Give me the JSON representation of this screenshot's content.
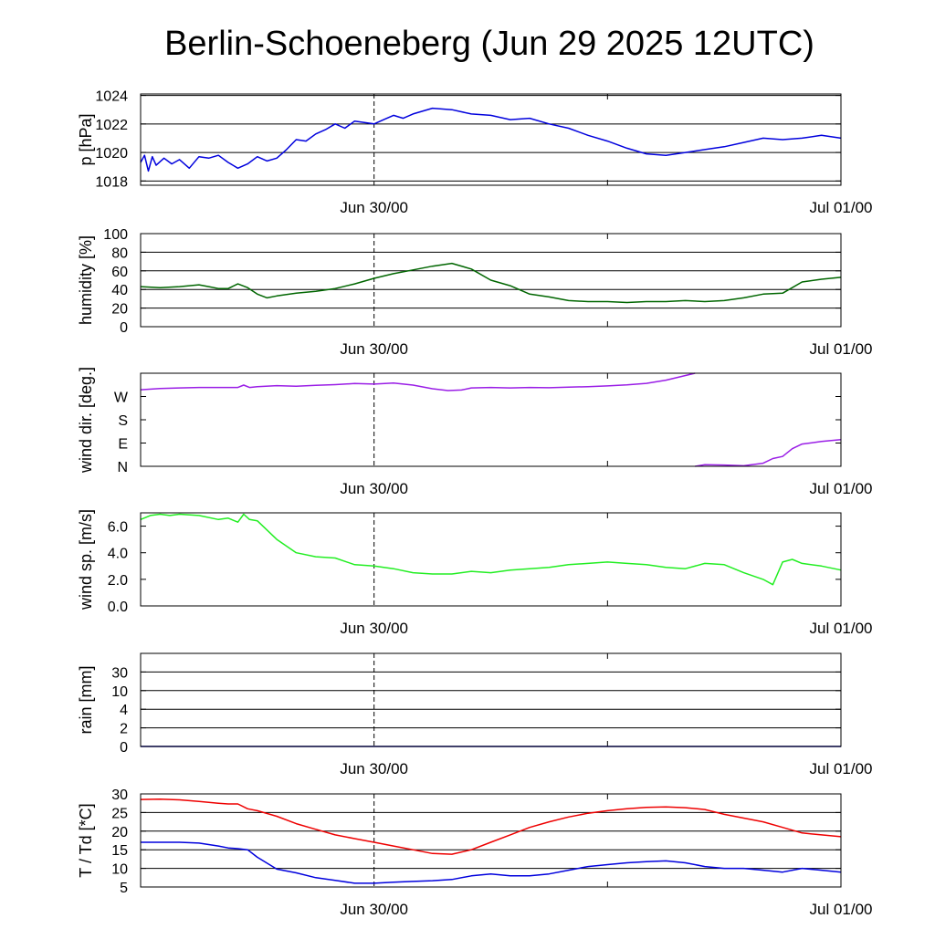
{
  "title": "Berlin-Schoeneberg (Jun 29 2025 12UTC)",
  "x_ticks": [
    "Jun 30/00",
    "Jul 01/00"
  ],
  "x_range_hours": [
    0,
    36
  ],
  "colors": {
    "pressure": "#0000dd",
    "humidity": "#006600",
    "wind_dir": "#9a1ee6",
    "wind_speed": "#22ee22",
    "rain": "#0000aa",
    "temperature": "#ee0000",
    "dewpoint": "#0000dd"
  },
  "chart_data": [
    {
      "type": "line",
      "ylabel": "p [hPa]",
      "ylim": [
        1017.7,
        1024.1
      ],
      "y_ticks": [
        1018,
        1020,
        1022,
        1024
      ],
      "y_tick_labels": [
        "1018",
        "1020",
        "1022",
        "1024"
      ],
      "grid_y": [
        1018,
        1020,
        1022,
        1024
      ],
      "series": [
        {
          "key": "pressure",
          "x": [
            0,
            0.2,
            0.4,
            0.6,
            0.8,
            1.2,
            1.6,
            2.0,
            2.5,
            3.0,
            3.5,
            4.0,
            4.5,
            5.0,
            5.5,
            6.0,
            6.5,
            7.0,
            7.5,
            8.0,
            8.5,
            9.0,
            9.5,
            10.0,
            10.5,
            11.0,
            11.5,
            12.0,
            12.5,
            13.0,
            13.5,
            14.0,
            15.0,
            16.0,
            17.0,
            18.0,
            19.0,
            20.0,
            21.0,
            22.0,
            23.0,
            24.0,
            25.0,
            26.0,
            27.0,
            28.0,
            29.0,
            30.0,
            31.0,
            32.0,
            33.0,
            34.0,
            35.0,
            36.0
          ],
          "y": [
            1019.3,
            1019.8,
            1018.7,
            1019.7,
            1019.1,
            1019.6,
            1019.2,
            1019.5,
            1018.9,
            1019.7,
            1019.6,
            1019.8,
            1019.3,
            1018.9,
            1019.2,
            1019.7,
            1019.4,
            1019.6,
            1020.2,
            1020.9,
            1020.8,
            1021.3,
            1021.6,
            1022.0,
            1021.7,
            1022.2,
            1022.1,
            1022.0,
            1022.3,
            1022.6,
            1022.4,
            1022.7,
            1023.1,
            1023.0,
            1022.7,
            1022.6,
            1022.3,
            1022.4,
            1022.0,
            1021.7,
            1021.2,
            1020.8,
            1020.3,
            1019.9,
            1019.8,
            1020.0,
            1020.2,
            1020.4,
            1020.7,
            1021.0,
            1020.9,
            1021.0,
            1021.2,
            1021.0
          ]
        }
      ]
    },
    {
      "type": "line",
      "ylabel": "humidity [%]",
      "ylim": [
        0,
        100
      ],
      "y_ticks": [
        0,
        20,
        40,
        60,
        80,
        100
      ],
      "y_tick_labels": [
        "0",
        "20",
        "40",
        "60",
        "80",
        "100"
      ],
      "grid_y": [
        20,
        40,
        60,
        80,
        100
      ],
      "series": [
        {
          "key": "humidity",
          "x": [
            0,
            1,
            2,
            3,
            3.5,
            4,
            4.5,
            5,
            5.5,
            6,
            6.5,
            7,
            8,
            9,
            10,
            11,
            12,
            13,
            14,
            15,
            16,
            17,
            18,
            19,
            20,
            21,
            22,
            23,
            24,
            25,
            26,
            27,
            28,
            29,
            30,
            31,
            32,
            33,
            34,
            35,
            36
          ],
          "y": [
            43,
            42,
            43,
            45,
            43,
            41,
            41,
            46,
            42,
            35,
            31,
            33,
            36,
            38,
            41,
            46,
            52,
            57,
            61,
            65,
            68,
            62,
            50,
            44,
            35,
            32,
            28,
            27,
            27,
            26,
            27,
            27,
            28,
            27,
            28,
            31,
            35,
            36,
            48,
            51,
            53
          ]
        }
      ]
    },
    {
      "type": "line",
      "ylabel": "wind dir. [deg.]",
      "ylim": [
        0,
        360
      ],
      "y_ticks": [
        0,
        90,
        180,
        270
      ],
      "y_tick_labels": [
        "N",
        "E",
        "S",
        "W"
      ],
      "grid_y": [],
      "series": [
        {
          "key": "wind_dir",
          "x": [
            0,
            1,
            2,
            3,
            4,
            5,
            5.3,
            5.6,
            6,
            7,
            8,
            9,
            10,
            11,
            12,
            13,
            14,
            15,
            15.8,
            16.5,
            17,
            18,
            19,
            20,
            21,
            22,
            23,
            24,
            25,
            26,
            27,
            28.5
          ],
          "y": [
            296,
            301,
            303,
            305,
            305,
            305,
            314,
            305,
            308,
            312,
            310,
            313,
            316,
            320,
            318,
            322,
            314,
            300,
            293,
            295,
            303,
            305,
            303,
            305,
            304,
            306,
            308,
            311,
            315,
            321,
            333,
            360
          ]
        },
        {
          "key": "wind_dir",
          "x": [
            28.5,
            29,
            30,
            31,
            32,
            32.5,
            33,
            33.5,
            34,
            35,
            36
          ],
          "y": [
            0,
            6,
            5,
            2,
            12,
            30,
            38,
            68,
            86,
            96,
            103
          ]
        }
      ]
    },
    {
      "type": "line",
      "ylabel": "wind sp. [m/s]",
      "ylim": [
        0,
        7
      ],
      "y_ticks": [
        0,
        2,
        4,
        6
      ],
      "y_tick_labels": [
        "0.0",
        "2.0",
        "4.0",
        "6.0"
      ],
      "grid_y": [],
      "series": [
        {
          "key": "wind_speed",
          "x": [
            0,
            0.5,
            1,
            1.5,
            2,
            3,
            4,
            4.5,
            5,
            5.3,
            5.6,
            6,
            7,
            8,
            9,
            10,
            11,
            12,
            13,
            14,
            15,
            16,
            17,
            18,
            19,
            20,
            21,
            22,
            23,
            24,
            25,
            26,
            27,
            28,
            29,
            30,
            31,
            32,
            32.5,
            33,
            33.5,
            34,
            35,
            36
          ],
          "y": [
            6.5,
            6.8,
            6.9,
            6.8,
            6.9,
            6.8,
            6.5,
            6.6,
            6.3,
            6.9,
            6.5,
            6.4,
            5.0,
            4.0,
            3.7,
            3.6,
            3.1,
            3.0,
            2.8,
            2.5,
            2.4,
            2.4,
            2.6,
            2.5,
            2.7,
            2.8,
            2.9,
            3.1,
            3.2,
            3.3,
            3.2,
            3.1,
            2.9,
            2.8,
            3.2,
            3.1,
            2.5,
            2.0,
            1.6,
            3.3,
            3.5,
            3.2,
            3.0,
            2.7
          ]
        }
      ]
    },
    {
      "type": "line",
      "ylabel": "rain [mm]",
      "ylim": [
        0,
        5
      ],
      "y_ticks": [
        0,
        1,
        2,
        3,
        4,
        5
      ],
      "y_tick_labels": [
        "0",
        "2",
        "4",
        "10",
        "30",
        ""
      ],
      "grid_y": [
        1,
        2,
        3,
        4
      ],
      "series": [
        {
          "key": "rain",
          "x": [
            0,
            36
          ],
          "y": [
            0,
            0
          ]
        }
      ]
    },
    {
      "type": "line",
      "ylabel": "T / Td [*C]",
      "ylim": [
        5,
        30
      ],
      "y_ticks": [
        5,
        10,
        15,
        20,
        25,
        30
      ],
      "y_tick_labels": [
        "5",
        "10",
        "15",
        "20",
        "25",
        "30"
      ],
      "grid_y": [
        10,
        15,
        20,
        25,
        30
      ],
      "series": [
        {
          "key": "temperature",
          "x": [
            0,
            1,
            2,
            3,
            4,
            4.5,
            5,
            5.5,
            6,
            7,
            8,
            9,
            10,
            11,
            12,
            13,
            14,
            15,
            16,
            17,
            18,
            19,
            20,
            21,
            22,
            23,
            24,
            25,
            26,
            27,
            28,
            29,
            30,
            31,
            32,
            33,
            34,
            35,
            36
          ],
          "y": [
            28.5,
            28.6,
            28.4,
            28.0,
            27.5,
            27.3,
            27.3,
            26.0,
            25.5,
            24.0,
            22.0,
            20.5,
            19.0,
            18.0,
            17.0,
            16.0,
            15.0,
            14.0,
            13.8,
            15.0,
            17.0,
            19.0,
            21.0,
            22.5,
            23.8,
            24.8,
            25.5,
            26.0,
            26.4,
            26.5,
            26.3,
            25.8,
            24.5,
            23.5,
            22.5,
            21.0,
            19.5,
            19.0,
            18.5
          ]
        },
        {
          "key": "dewpoint",
          "x": [
            0,
            1,
            2,
            3,
            4,
            4.5,
            5,
            5.5,
            6,
            7,
            8,
            9,
            10,
            11,
            12,
            13,
            14,
            15,
            16,
            17,
            18,
            19,
            20,
            21,
            22,
            23,
            24,
            25,
            26,
            27,
            28,
            29,
            30,
            31,
            32,
            33,
            34,
            35,
            36
          ],
          "y": [
            17.0,
            17.0,
            17.0,
            16.8,
            16.0,
            15.5,
            15.3,
            15.0,
            13.0,
            9.8,
            8.8,
            7.5,
            6.8,
            6.0,
            6.0,
            6.3,
            6.5,
            6.7,
            7.0,
            8.0,
            8.5,
            8.0,
            8.0,
            8.5,
            9.5,
            10.5,
            11.0,
            11.5,
            11.8,
            12.0,
            11.5,
            10.5,
            10.0,
            10.0,
            9.5,
            9.0,
            10.0,
            9.5,
            9.0
          ]
        }
      ]
    }
  ]
}
